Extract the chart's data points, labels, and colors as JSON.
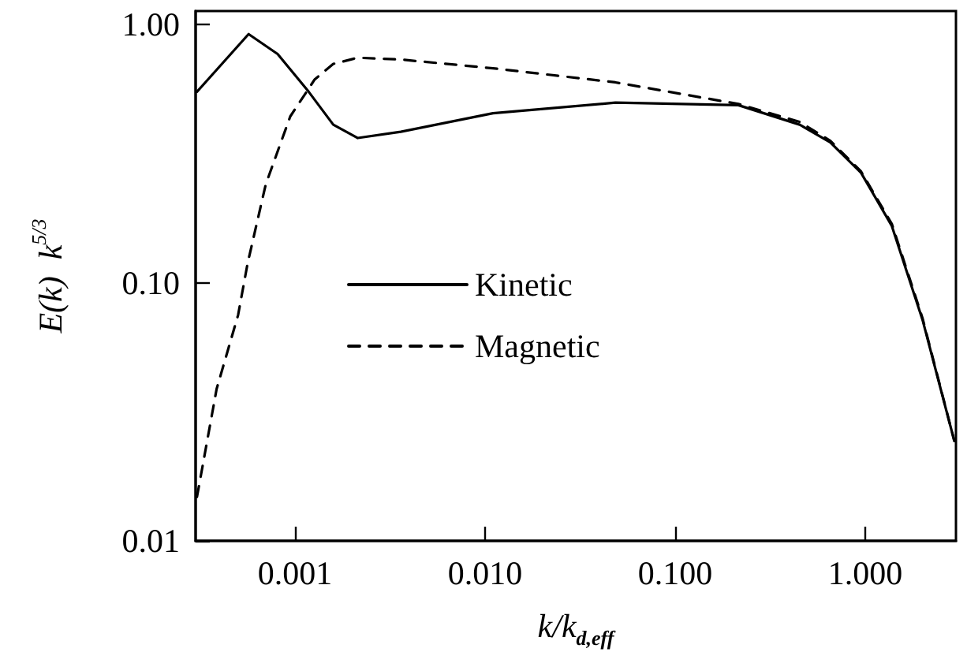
{
  "chart_data": {
    "type": "line",
    "xlabel": "k/k$_{d,eff}$",
    "ylabel": "E(k)  k$^{5/3}$",
    "log": "xy",
    "grid": false,
    "legend": "center",
    "marker": "none",
    "xlim": [
      0.0003,
      3
    ],
    "ylim": [
      0.01,
      1.13
    ],
    "xticks": [
      {
        "value": 0.001,
        "label": "0.001"
      },
      {
        "value": 0.01,
        "label": "0.010"
      },
      {
        "value": 0.1,
        "label": "0.100"
      },
      {
        "value": 1,
        "label": "1.000"
      }
    ],
    "yticks": [
      {
        "value": 0.01,
        "label": "0.01"
      },
      {
        "value": 0.1,
        "label": "0.10"
      },
      {
        "value": 1,
        "label": "1.00"
      }
    ],
    "series": [
      {
        "name": "Kinetic",
        "color": "#000000",
        "line_style": "solid",
        "x": [
          0.000305,
          0.00057,
          0.00081,
          0.00118,
          0.00159,
          0.00214,
          0.0036,
          0.011,
          0.0485,
          0.215,
          0.452,
          0.655,
          0.95,
          1.38,
          2.0,
          2.94
        ],
        "values": [
          0.55,
          0.92,
          0.77,
          0.55,
          0.41,
          0.364,
          0.385,
          0.454,
          0.499,
          0.488,
          0.41,
          0.35,
          0.267,
          0.166,
          0.072,
          0.0244
        ]
      },
      {
        "name": "Magnetic",
        "color": "#000000",
        "line_style": "dashed",
        "x": [
          0.000305,
          0.000387,
          0.000502,
          0.000562,
          0.000702,
          0.000944,
          0.00127,
          0.00159,
          0.00214,
          0.0036,
          0.011,
          0.0485,
          0.215,
          0.452,
          0.655,
          0.95,
          1.38,
          2.0,
          2.94
        ],
        "values": [
          0.0148,
          0.0388,
          0.075,
          0.118,
          0.241,
          0.441,
          0.614,
          0.705,
          0.745,
          0.733,
          0.678,
          0.598,
          0.493,
          0.42,
          0.355,
          0.27,
          0.169,
          0.073,
          0.0244
        ]
      }
    ]
  }
}
